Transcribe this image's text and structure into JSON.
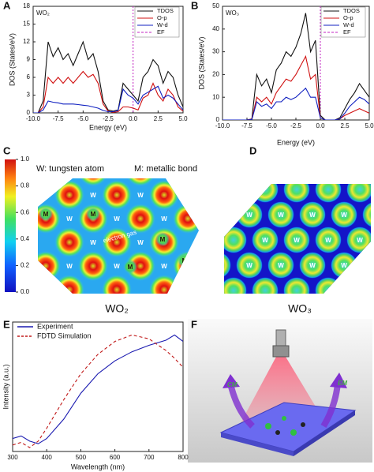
{
  "chart_data": [
    {
      "type": "line",
      "annotation": "WO₂",
      "x": [
        -10,
        -9.5,
        -9,
        -8.5,
        -8,
        -7.5,
        -7,
        -6.5,
        -6,
        -5.5,
        -5,
        -4.5,
        -4,
        -3.5,
        -3,
        -2.5,
        -2,
        -1.5,
        -1,
        -0.5,
        0,
        0.5,
        1,
        1.5,
        2,
        2.5,
        3,
        3.5,
        4,
        4.5,
        5
      ],
      "series": [
        {
          "name": "TDOS",
          "color": "#111111",
          "values": [
            0,
            0,
            2,
            12,
            9.5,
            11,
            9,
            10,
            8,
            10,
            12,
            9,
            10,
            7,
            2,
            0.5,
            0.3,
            0.5,
            5,
            4,
            3,
            2,
            6,
            7,
            9,
            8,
            5,
            7,
            6,
            3,
            1
          ]
        },
        {
          "name": "O-p",
          "color": "#d01010",
          "values": [
            0,
            0,
            1,
            6,
            5,
            6,
            5,
            6,
            5,
            6,
            7,
            6,
            6.5,
            5,
            1.5,
            0.3,
            0.1,
            0.2,
            1,
            1,
            0.8,
            0.5,
            2.5,
            3,
            5,
            3,
            2,
            4,
            3,
            1,
            0.3
          ]
        },
        {
          "name": "W-d",
          "color": "#1020c0",
          "values": [
            0,
            0,
            0.5,
            2,
            1.8,
            1.7,
            1.5,
            1.5,
            1.5,
            1.4,
            1.3,
            1.2,
            1,
            0.8,
            0.4,
            0.2,
            0.2,
            0.4,
            4,
            3,
            2.5,
            1.5,
            3,
            3.5,
            4,
            4.5,
            2.5,
            3,
            2.5,
            1.5,
            0.5
          ]
        }
      ],
      "vline": {
        "name": "EF",
        "x": 0,
        "color": "#c020c0"
      },
      "xlim": [
        -10,
        5
      ],
      "xticks": [
        {
          "value": -10,
          "label": "-10.0"
        },
        -7.5,
        {
          "value": -5,
          "label": "-5.0"
        },
        -2.5,
        {
          "value": 0,
          "label": "0.0"
        },
        2.5,
        {
          "value": 5,
          "label": "5.0"
        }
      ],
      "ylim": [
        0,
        18
      ],
      "yticks": [
        0,
        3,
        6,
        9,
        12,
        15,
        18
      ],
      "xlabel": "Energy (eV)",
      "ylabel": "DOS (States/eV)",
      "legend": "upper right"
    },
    {
      "type": "line",
      "annotation": "WO₃",
      "x": [
        -10,
        -9.5,
        -9,
        -8.5,
        -8,
        -7.5,
        -7,
        -6.5,
        -6,
        -5.5,
        -5,
        -4.5,
        -4,
        -3.5,
        -3,
        -2.5,
        -2,
        -1.5,
        -1,
        -0.5,
        0,
        0.5,
        1,
        1.5,
        2,
        2.5,
        3,
        3.5,
        4,
        4.5,
        5
      ],
      "series": [
        {
          "name": "TDOS",
          "color": "#111111",
          "values": [
            0,
            0,
            0,
            0,
            0,
            0,
            0.5,
            20,
            15,
            18,
            12,
            22,
            25,
            30,
            28,
            32,
            38,
            47,
            30,
            35,
            2,
            0,
            0,
            0,
            1,
            5,
            9,
            12,
            16,
            13,
            10
          ]
        },
        {
          "name": "O-p",
          "color": "#d01010",
          "values": [
            0,
            0,
            0,
            0,
            0,
            0,
            0.3,
            10,
            8,
            10,
            7,
            12,
            15,
            18,
            17,
            20,
            24,
            28,
            18,
            20,
            1,
            0,
            0,
            0,
            0.5,
            2,
            3,
            4,
            5,
            4,
            3
          ]
        },
        {
          "name": "W-d",
          "color": "#1020c0",
          "values": [
            0,
            0,
            0,
            0,
            0,
            0,
            0.2,
            8,
            6,
            7,
            5,
            8,
            8,
            10,
            9,
            10,
            12,
            14,
            10,
            10,
            1,
            0,
            0,
            0,
            0.5,
            3,
            6,
            8,
            10,
            9,
            7
          ]
        }
      ],
      "vline": {
        "name": "EF",
        "x": 0,
        "color": "#c020c0"
      },
      "xlim": [
        -10,
        5
      ],
      "xticks": [
        {
          "value": -10,
          "label": "-10.0"
        },
        -7.5,
        {
          "value": -5,
          "label": "-5.0"
        },
        -2.5,
        {
          "value": 0,
          "label": "0.0"
        },
        2.5,
        {
          "value": 5,
          "label": "5.0"
        }
      ],
      "ylim": [
        0,
        50
      ],
      "yticks": [
        0,
        10,
        20,
        30,
        40,
        50
      ],
      "xlabel": "Energy (eV)",
      "ylabel": "DOS (States/eV)",
      "legend": "upper right"
    },
    {
      "type": "colorbar",
      "ylim": [
        0,
        1
      ],
      "yticks": [
        {
          "value": 0,
          "label": "0.0"
        },
        0.2,
        0.4,
        0.6,
        0.8,
        {
          "value": 1,
          "label": "1.0"
        }
      ]
    },
    {
      "type": "line",
      "x": [
        300,
        325,
        350,
        375,
        400,
        450,
        500,
        550,
        600,
        650,
        700,
        750,
        775,
        800
      ],
      "series": [
        {
          "name": "Experiment",
          "color": "#1a1ab0",
          "style": "solid",
          "values": [
            0.1,
            0.12,
            0.08,
            0.06,
            0.1,
            0.25,
            0.45,
            0.6,
            0.7,
            0.77,
            0.82,
            0.86,
            0.9,
            0.85
          ]
        },
        {
          "name": "FDTD Simulation",
          "color": "#c01818",
          "style": "dashed",
          "values": [
            0.05,
            0.07,
            0.03,
            0.08,
            0.18,
            0.4,
            0.6,
            0.75,
            0.85,
            0.9,
            0.87,
            0.78,
            0.72,
            0.65
          ]
        }
      ],
      "xlim": [
        300,
        800
      ],
      "xticks": [
        300,
        400,
        500,
        600,
        700,
        800
      ],
      "ylim": [
        0,
        1
      ],
      "xlabel": "Wavelength (nm)",
      "ylabel": "Intensity (a.u.)",
      "legend": "upper left"
    }
  ],
  "figure": {
    "panel_labels": [
      "A",
      "B",
      "C",
      "D",
      "E",
      "F"
    ],
    "c_legend": [
      "W: tungsten atom",
      "M: metallic bond"
    ],
    "c_title": "WO₂",
    "c_annotation": "electron gas",
    "c_atoms": [
      "W",
      "W",
      "W",
      "W",
      "W",
      "W",
      "W",
      "W",
      "W",
      "W"
    ],
    "c_bonds": [
      "M",
      "M",
      "M",
      "M",
      "M"
    ],
    "d_title": "WO₃",
    "d_atoms": [
      "W",
      "W",
      "W",
      "W",
      "W",
      "W",
      "W",
      "W",
      "W",
      "W",
      "W",
      "W"
    ],
    "f_labels": [
      "CM",
      "EM"
    ]
  }
}
